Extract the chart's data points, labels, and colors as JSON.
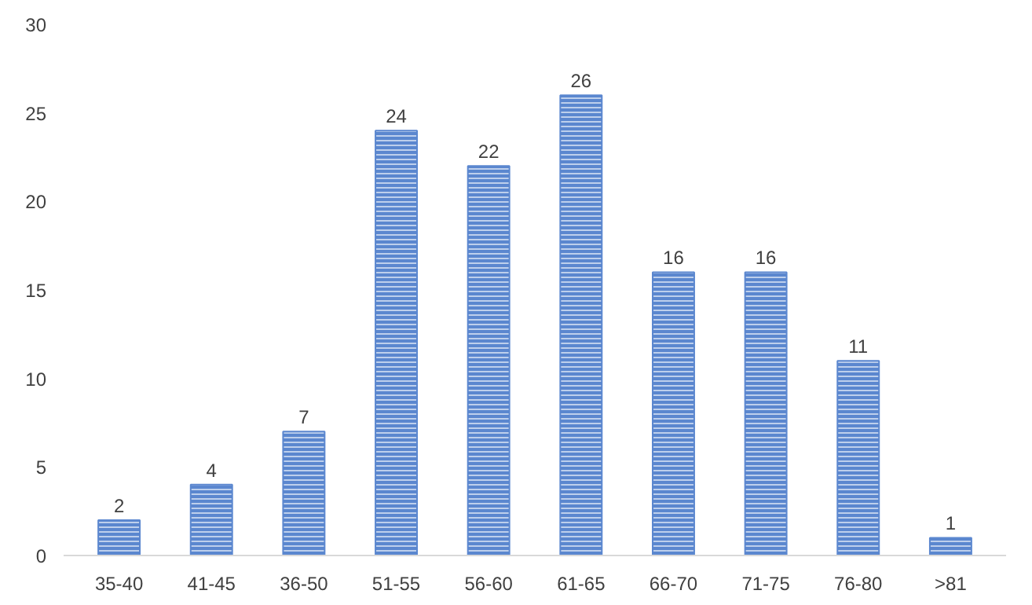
{
  "chart_data": {
    "type": "bar",
    "categories": [
      "35-40",
      "41-45",
      "36-50",
      "51-55",
      "56-60",
      "61-65",
      "66-70",
      "71-75",
      "76-80",
      ">81"
    ],
    "values": [
      2,
      4,
      7,
      24,
      22,
      26,
      16,
      16,
      11,
      1
    ],
    "color": "#5b87cf",
    "ylim": [
      0,
      30
    ],
    "yticks": [
      0,
      5,
      10,
      15,
      20,
      25,
      30
    ],
    "grid": false,
    "data_labels": true
  }
}
